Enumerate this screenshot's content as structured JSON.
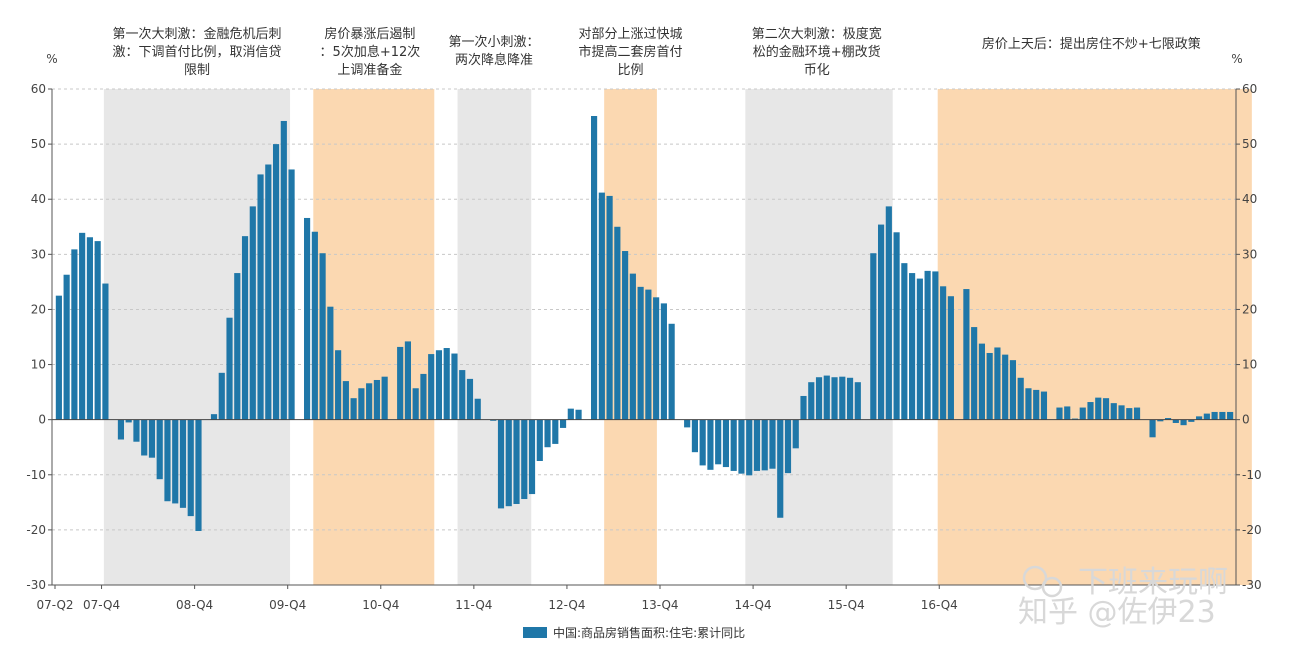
{
  "chart_data": {
    "type": "bar",
    "title": "",
    "xlabel": "",
    "ylabel": "%",
    "ylabel_right": "%",
    "ylim": [
      -30,
      60
    ],
    "yticks": [
      -30,
      -20,
      -10,
      0,
      10,
      20,
      30,
      40,
      50,
      60
    ],
    "x_tick_labels": [
      {
        "label": "07-Q2",
        "index": 0
      },
      {
        "label": "07-Q4",
        "index": 6
      },
      {
        "label": "08-Q4",
        "index": 18
      },
      {
        "label": "09-Q4",
        "index": 30
      },
      {
        "label": "10-Q4",
        "index": 42
      },
      {
        "label": "11-Q4",
        "index": 54
      },
      {
        "label": "12-Q4",
        "index": 66
      },
      {
        "label": "13-Q4",
        "index": 78
      },
      {
        "label": "14-Q4",
        "index": 90
      },
      {
        "label": "15-Q4",
        "index": 102
      },
      {
        "label": "16-Q4",
        "index": 114
      }
    ],
    "series": [
      {
        "name": "中国:商品房销售面积:住宅:累计同比",
        "color": "#1f77a8",
        "values": [
          22.5,
          26.3,
          30.9,
          33.9,
          33.1,
          32.4,
          24.7,
          null,
          -3.6,
          -0.5,
          -4,
          -6.5,
          -6.9,
          -10.8,
          -14.8,
          -15.2,
          -16,
          -17.5,
          -20.2,
          null,
          1,
          8.5,
          18.5,
          26.6,
          33.3,
          38.7,
          44.5,
          46.3,
          50,
          54.2,
          45.4,
          null,
          36.6,
          34.1,
          30.2,
          20.5,
          12.6,
          7,
          3.9,
          5.7,
          6.6,
          7.2,
          7.8,
          null,
          13.2,
          14.2,
          5.7,
          8.3,
          11.9,
          12.6,
          13,
          12,
          9,
          7.4,
          3.8,
          null,
          -0.2,
          -16.1,
          -15.7,
          -15.3,
          -14.4,
          -13.5,
          -7.5,
          -5,
          -4.4,
          -1.5,
          2,
          1.8,
          null,
          55.1,
          41.2,
          40.6,
          35,
          30.6,
          26.5,
          24.1,
          23.6,
          22.2,
          21.1,
          17.4,
          null,
          -1.4,
          -5.9,
          -8.3,
          -9.1,
          -8.1,
          -8.6,
          -9.3,
          -9.8,
          -10.1,
          -9.3,
          -9.2,
          -8.9,
          -17.8,
          -9.7,
          -5.2,
          4.3,
          6.8,
          7.7,
          8,
          7.7,
          7.8,
          7.6,
          6.8,
          null,
          30.2,
          35.4,
          38.7,
          34,
          28.4,
          26.6,
          25.6,
          27,
          26.9,
          24.2,
          22.4,
          null,
          23.7,
          16.8,
          13.8,
          12.1,
          13.1,
          11.8,
          10.8,
          7.6,
          5.7,
          5.4,
          5.1,
          null,
          2.2,
          2.4,
          0.2,
          2.2,
          3.2,
          4,
          3.9,
          3,
          2.6,
          2.1,
          2.2,
          null,
          -3.2,
          -0.3,
          0.3,
          -0.6,
          -1,
          -0.4,
          0.6,
          1.1,
          1.4,
          1.4,
          1.4
        ]
      }
    ],
    "shaded_periods": [
      {
        "from_index": 6.3,
        "to_index": 30.3,
        "color": "#e7e7e7"
      },
      {
        "from_index": 33.3,
        "to_index": 48.9,
        "color": "#fbd8b1"
      },
      {
        "from_index": 51.9,
        "to_index": 61.4,
        "color": "#e7e7e7"
      },
      {
        "from_index": 70.8,
        "to_index": 77.6,
        "color": "#fbd8b1"
      },
      {
        "from_index": 89,
        "to_index": 108,
        "color": "#e7e7e7"
      },
      {
        "from_index": 113.8,
        "to_index": 154.3,
        "color": "#fbd8b1"
      }
    ],
    "annotations": [
      {
        "id": "a1",
        "lines": [
          "第一次大刺激：金融危机后刺",
          "激：下调首付比例，取消信贷",
          "限制"
        ],
        "center_index": 18.3
      },
      {
        "id": "a2",
        "lines": [
          "房价暴涨后遏制",
          "：5次加息+12次",
          "上调准备金"
        ],
        "center_index": 40.6
      },
      {
        "id": "a3",
        "lines": [
          "第一次小刺激：",
          "两次降息降准"
        ],
        "center_index": 56.6
      },
      {
        "id": "a4",
        "lines": [
          "对部分上涨过快城",
          "市提高二套房首付",
          "比例"
        ],
        "center_index": 74.2
      },
      {
        "id": "a5",
        "lines": [
          "第二次大刺激：极度宽",
          "松的金融环境+棚改货",
          "币化"
        ],
        "center_index": 98.2
      },
      {
        "id": "a6",
        "lines": [
          "房价上天后：提出房住不炒+七限政策"
        ],
        "center_index": 133.6
      }
    ],
    "legend": {
      "position": "bottom-center",
      "entries": [
        "中国:商品房销售面积:住宅:累计同比"
      ]
    },
    "grid": true
  },
  "watermark": {
    "line1": "下班来玩啊",
    "line2": "知乎 @佐伊23"
  }
}
